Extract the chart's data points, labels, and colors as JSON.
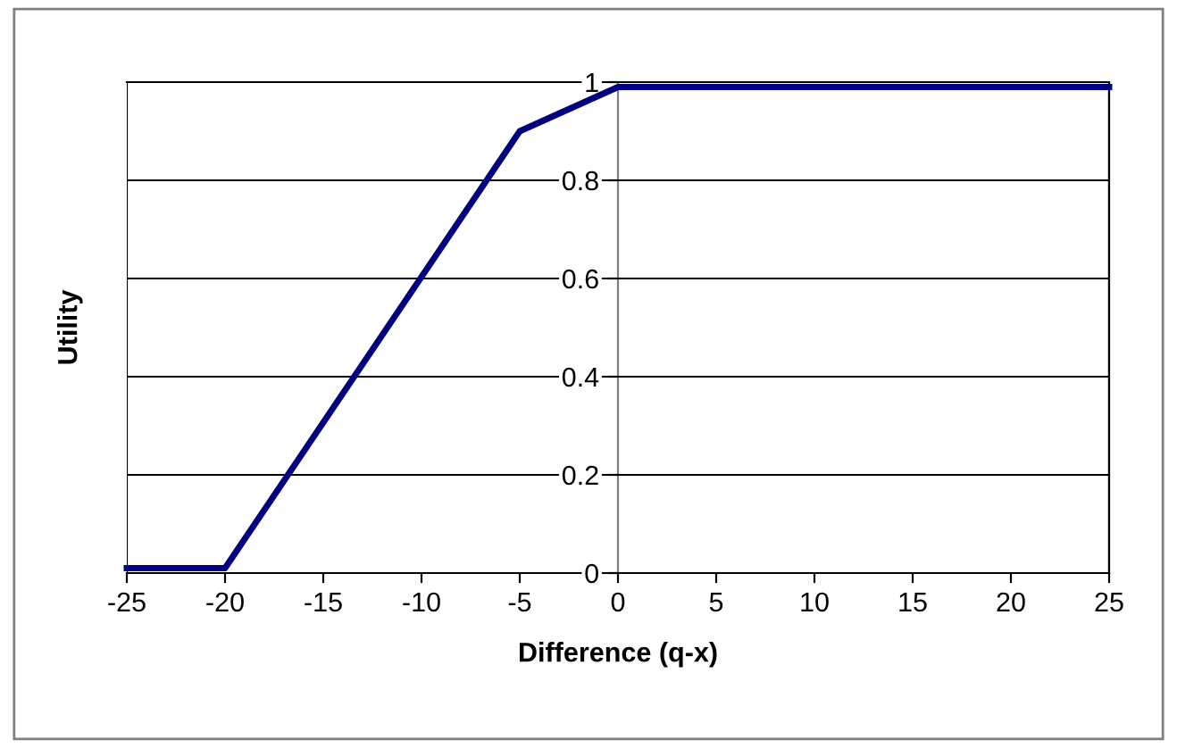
{
  "chart_data": {
    "type": "line",
    "xlabel": "Difference (q-x)",
    "ylabel": "Utility",
    "x": [
      -25,
      -20,
      -5,
      0,
      25
    ],
    "series": [
      {
        "color": "#000080",
        "values": [
          0.01,
          0.01,
          0.9,
          0.99,
          0.99
        ]
      }
    ],
    "xlim": [
      -25,
      25
    ],
    "xticks": [
      -25,
      -20,
      -15,
      -10,
      -5,
      0,
      5,
      10,
      15,
      20,
      25
    ],
    "ylim": [
      0,
      1
    ],
    "yticks": [
      0,
      0.2,
      0.4,
      0.6,
      0.8,
      1
    ],
    "grid": "y",
    "legend": false,
    "marker": "none",
    "line_style": "solid"
  }
}
